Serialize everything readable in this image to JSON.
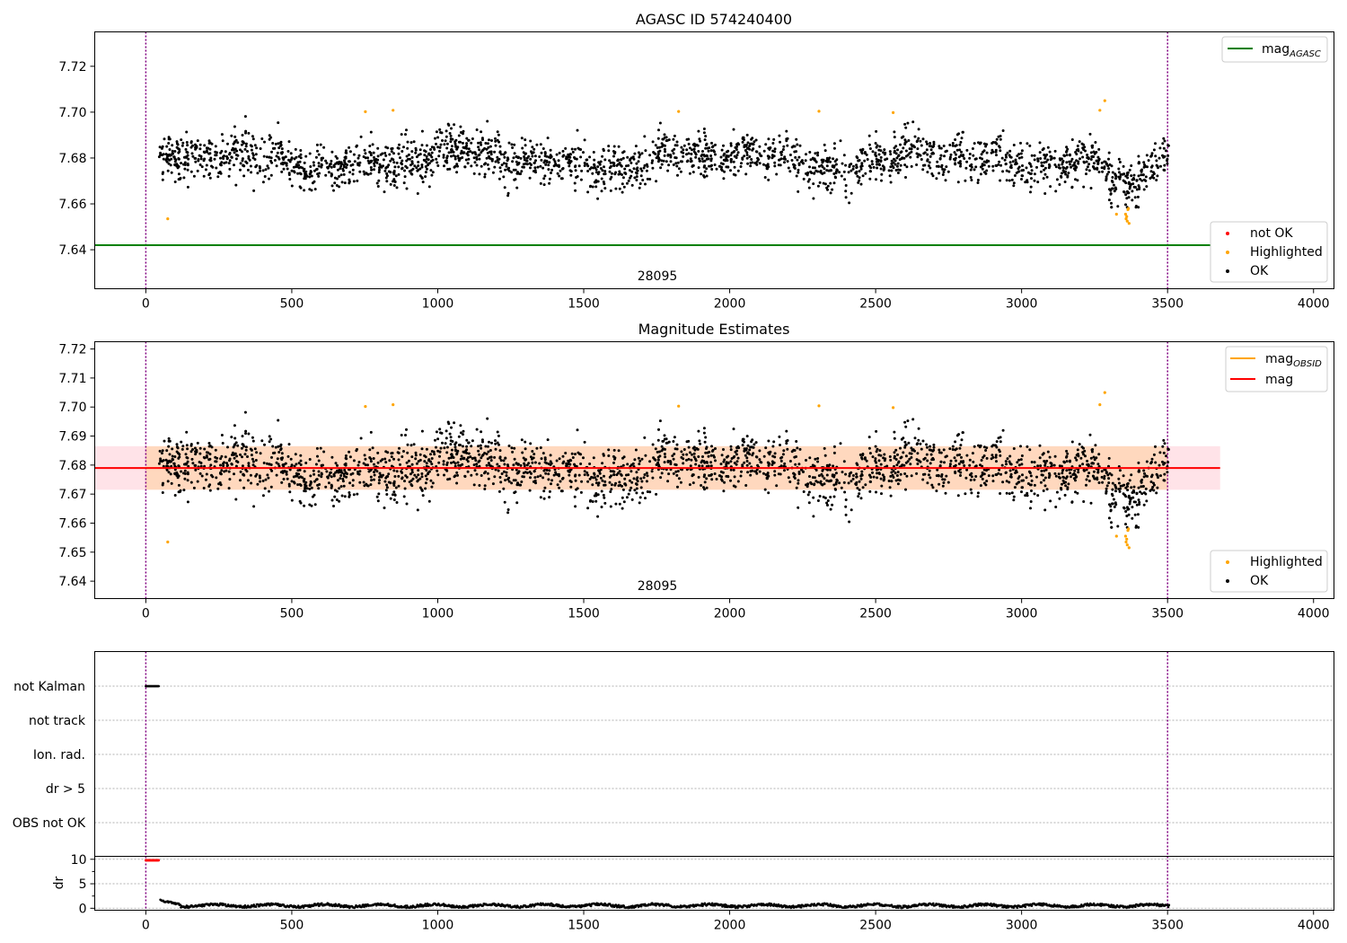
{
  "figure": {
    "title": "AGASC ID 574240400",
    "title_2": "Magnitude Estimates"
  },
  "colors": {
    "ok": "#000000",
    "highlighted": "#ffa500",
    "not_ok": "#ff0000",
    "mag_agasc": "#008000",
    "mag_obsid": "#ffa500",
    "mag": "#ff0000",
    "band": "#ffc0cb",
    "vline": "#800080",
    "grid": "#b0b0b0"
  },
  "chart_data": [
    {
      "id": "panel1",
      "type": "scatter",
      "title": "AGASC ID 574240400",
      "xlim": [
        -175,
        4070
      ],
      "ylim": [
        7.623,
        7.735
      ],
      "xticks": [
        0,
        500,
        1000,
        1500,
        2000,
        2500,
        3000,
        3500,
        4000
      ],
      "yticks": [
        7.64,
        7.66,
        7.68,
        7.7,
        7.72
      ],
      "ytick_labels": [
        "7.64",
        "7.66",
        "7.68",
        "7.70",
        "7.72"
      ],
      "vlines": [
        0,
        3500
      ],
      "annotation": {
        "text": "28095",
        "x": 1750
      },
      "hlines": [
        {
          "name": "mag_AGASC",
          "y": 7.642,
          "x0": -175,
          "x1": 3680
        }
      ],
      "legend_upper": [
        {
          "label": "mag",
          "sub": "AGASC",
          "kind": "line",
          "color": "#008000"
        }
      ],
      "legend_lower": [
        {
          "label": "not OK",
          "kind": "dot",
          "color": "#ff0000"
        },
        {
          "label": "Highlighted",
          "kind": "dot",
          "color": "#ffa500"
        },
        {
          "label": "OK",
          "kind": "dot",
          "color": "#000000"
        }
      ],
      "series": [
        {
          "name": "OK",
          "x_range": [
            45,
            3505
          ],
          "n": 2400,
          "center": 7.679,
          "spread": 0.0065
        },
        {
          "name": "Highlighted",
          "points": [
            [
              75,
              7.6535
            ],
            [
              752,
              7.7002
            ],
            [
              847,
              7.7008
            ],
            [
              1825,
              7.7003
            ],
            [
              2306,
              7.7004
            ],
            [
              2560,
              7.6998
            ],
            [
              3268,
              7.7008
            ],
            [
              3285,
              7.705
            ],
            [
              3325,
              7.6555
            ],
            [
              3356,
              7.6555
            ],
            [
              3358,
              7.6535
            ],
            [
              3360,
              7.6545
            ],
            [
              3362,
              7.6525
            ],
            [
              3364,
              7.6575
            ],
            [
              3366,
              7.658
            ],
            [
              3368,
              7.6515
            ]
          ]
        }
      ]
    },
    {
      "id": "panel2",
      "type": "scatter",
      "title": "Magnitude Estimates",
      "xlim": [
        -175,
        4070
      ],
      "ylim": [
        7.634,
        7.7225
      ],
      "xticks": [
        0,
        500,
        1000,
        1500,
        2000,
        2500,
        3000,
        3500,
        4000
      ],
      "yticks": [
        7.64,
        7.65,
        7.66,
        7.67,
        7.68,
        7.69,
        7.7,
        7.71,
        7.72
      ],
      "ytick_labels": [
        "7.64",
        "7.65",
        "7.66",
        "7.67",
        "7.68",
        "7.69",
        "7.70",
        "7.71",
        "7.72"
      ],
      "vlines": [
        0,
        3500
      ],
      "annotation": {
        "text": "28095",
        "x": 1750
      },
      "band": {
        "y0": 7.6715,
        "y1": 7.6865,
        "x0": -175,
        "x1": 3680
      },
      "hlines": [
        {
          "name": "mag",
          "y": 7.679,
          "x0": -175,
          "x1": 3680
        }
      ],
      "legend_upper": [
        {
          "label": "mag",
          "sub": "OBSID",
          "kind": "line",
          "color": "#ffa500"
        },
        {
          "label": "mag",
          "kind": "line",
          "color": "#ff0000"
        }
      ],
      "legend_lower": [
        {
          "label": "Highlighted",
          "kind": "dot",
          "color": "#ffa500"
        },
        {
          "label": "OK",
          "kind": "dot",
          "color": "#000000"
        }
      ],
      "series": [
        {
          "name": "OK",
          "x_range": [
            45,
            3505
          ],
          "n": 2400,
          "center": 7.679,
          "spread": 0.0065
        },
        {
          "name": "Highlighted",
          "points": [
            [
              75,
              7.6535
            ],
            [
              752,
              7.7002
            ],
            [
              847,
              7.7008
            ],
            [
              1825,
              7.7003
            ],
            [
              2306,
              7.7004
            ],
            [
              2560,
              7.6998
            ],
            [
              3268,
              7.7008
            ],
            [
              3285,
              7.705
            ],
            [
              3325,
              7.6555
            ],
            [
              3356,
              7.6555
            ],
            [
              3358,
              7.6535
            ],
            [
              3360,
              7.6545
            ],
            [
              3362,
              7.6525
            ],
            [
              3364,
              7.6575
            ],
            [
              3366,
              7.658
            ],
            [
              3368,
              7.6515
            ]
          ]
        }
      ]
    },
    {
      "id": "panel3",
      "type": "scatter",
      "xlim": [
        -175,
        4070
      ],
      "categories": [
        "not Kalman",
        "not track",
        "Ion. rad.",
        "dr > 5",
        "OBS not OK"
      ],
      "vlines": [
        0,
        3500
      ],
      "flags": [
        {
          "category": "not Kalman",
          "x_range": [
            0,
            45
          ]
        }
      ]
    },
    {
      "id": "panel4",
      "type": "line",
      "xlim": [
        -175,
        4070
      ],
      "ylim": [
        -0.4,
        10.6
      ],
      "ylabel": "dr",
      "xticks": [
        0,
        500,
        1000,
        1500,
        2000,
        2500,
        3000,
        3500,
        4000
      ],
      "yticks": [
        0,
        5,
        10
      ],
      "ytick_labels": [
        "0",
        "5",
        "10"
      ],
      "vlines": [
        0,
        3500
      ],
      "series": [
        {
          "name": "dr OK",
          "x_range": [
            50,
            3505
          ],
          "base": 0.55,
          "start_bump": 1.6
        },
        {
          "name": "dr not OK",
          "x_range": [
            0,
            45
          ],
          "value": 9.8
        }
      ]
    }
  ]
}
